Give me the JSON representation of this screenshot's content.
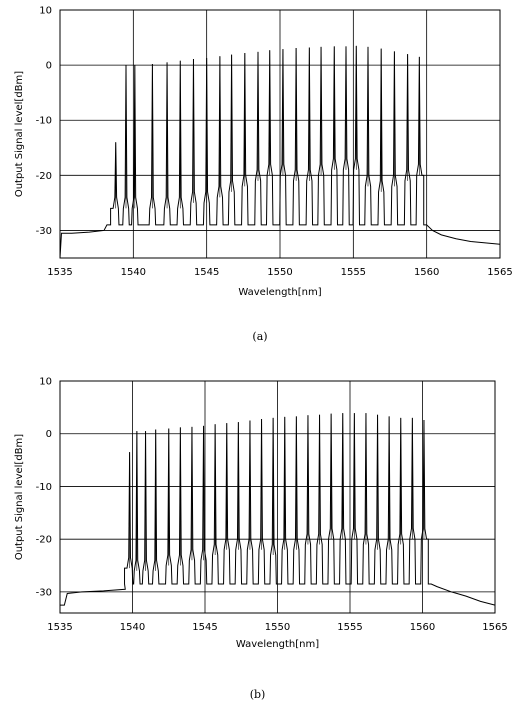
{
  "chart_data": [
    {
      "type": "line",
      "caption": "(a)",
      "xlabel": "Wavelength[nm]",
      "ylabel": "Output Signal level[dBm]",
      "xlim": [
        1535,
        1565
      ],
      "ylim": [
        -35,
        10
      ],
      "xticks": [
        1535,
        1540,
        1545,
        1550,
        1555,
        1560,
        1565
      ],
      "yticks": [
        10,
        0,
        -10,
        -20,
        -30
      ],
      "grid": true,
      "noise_floor": -29,
      "edge_level": -26,
      "peaks": [
        {
          "x": 1538.8,
          "y": -14,
          "base": -26
        },
        {
          "x": 1539.5,
          "y": 0,
          "base": -26
        },
        {
          "x": 1540.1,
          "y": 0,
          "base": -26
        },
        {
          "x": 1541.3,
          "y": 0.2,
          "base": -26
        },
        {
          "x": 1542.3,
          "y": 0.5,
          "base": -26
        },
        {
          "x": 1543.2,
          "y": 0.8,
          "base": -26
        },
        {
          "x": 1544.1,
          "y": 1.1,
          "base": -25
        },
        {
          "x": 1545.0,
          "y": 1.3,
          "base": -25
        },
        {
          "x": 1545.9,
          "y": 1.6,
          "base": -24
        },
        {
          "x": 1546.7,
          "y": 1.9,
          "base": -23
        },
        {
          "x": 1547.6,
          "y": 2.2,
          "base": -22
        },
        {
          "x": 1548.5,
          "y": 2.4,
          "base": -21
        },
        {
          "x": 1549.3,
          "y": 2.7,
          "base": -20
        },
        {
          "x": 1550.2,
          "y": 2.9,
          "base": -20
        },
        {
          "x": 1551.1,
          "y": 3.1,
          "base": -21
        },
        {
          "x": 1552.0,
          "y": 3.2,
          "base": -21
        },
        {
          "x": 1552.8,
          "y": 3.3,
          "base": -20
        },
        {
          "x": 1553.7,
          "y": 3.4,
          "base": -19
        },
        {
          "x": 1554.5,
          "y": 3.4,
          "base": -19
        },
        {
          "x": 1555.2,
          "y": 3.5,
          "base": -19
        },
        {
          "x": 1556.0,
          "y": 3.3,
          "base": -22
        },
        {
          "x": 1556.9,
          "y": 3.0,
          "base": -23
        },
        {
          "x": 1557.8,
          "y": 2.5,
          "base": -22
        },
        {
          "x": 1558.7,
          "y": 2.0,
          "base": -21
        },
        {
          "x": 1559.5,
          "y": 1.5,
          "base": -20
        }
      ],
      "leading_noise": [
        [
          1535.0,
          -35
        ],
        [
          1535.1,
          -30.5
        ],
        [
          1535.8,
          -30.5
        ],
        [
          1537.0,
          -30.3
        ],
        [
          1538.0,
          -30.0
        ],
        [
          1538.2,
          -29.0
        ]
      ],
      "trailing_noise": [
        [
          1560.0,
          -29.0
        ],
        [
          1560.4,
          -30.0
        ],
        [
          1561.0,
          -30.8
        ],
        [
          1562.0,
          -31.5
        ],
        [
          1563.0,
          -32.0
        ],
        [
          1565.0,
          -32.5
        ]
      ]
    },
    {
      "type": "line",
      "caption": "(b)",
      "xlabel": "Wavelength[nm]",
      "ylabel": "Output Signal level[dBm]",
      "xlim": [
        1535,
        1565
      ],
      "ylim": [
        -34,
        10
      ],
      "xticks": [
        1535,
        1540,
        1545,
        1550,
        1555,
        1560,
        1565
      ],
      "yticks": [
        10,
        0,
        -10,
        -20,
        -30
      ],
      "grid": true,
      "noise_floor": -28.5,
      "edge_level": -25.5,
      "peaks": [
        {
          "x": 1539.8,
          "y": -3.5,
          "base": -25.5
        },
        {
          "x": 1540.3,
          "y": 0.5,
          "base": -26
        },
        {
          "x": 1540.9,
          "y": 0.5,
          "base": -26
        },
        {
          "x": 1541.6,
          "y": 0.8,
          "base": -26
        },
        {
          "x": 1542.5,
          "y": 1.0,
          "base": -25
        },
        {
          "x": 1543.3,
          "y": 1.2,
          "base": -25
        },
        {
          "x": 1544.1,
          "y": 1.3,
          "base": -24
        },
        {
          "x": 1544.9,
          "y": 1.5,
          "base": -24
        },
        {
          "x": 1545.7,
          "y": 1.8,
          "base": -23
        },
        {
          "x": 1546.5,
          "y": 2.0,
          "base": -22
        },
        {
          "x": 1547.3,
          "y": 2.2,
          "base": -22
        },
        {
          "x": 1548.1,
          "y": 2.5,
          "base": -22
        },
        {
          "x": 1548.9,
          "y": 2.8,
          "base": -22
        },
        {
          "x": 1549.7,
          "y": 3.0,
          "base": -23
        },
        {
          "x": 1550.5,
          "y": 3.2,
          "base": -22
        },
        {
          "x": 1551.3,
          "y": 3.3,
          "base": -22
        },
        {
          "x": 1552.1,
          "y": 3.5,
          "base": -21
        },
        {
          "x": 1552.9,
          "y": 3.6,
          "base": -21
        },
        {
          "x": 1553.7,
          "y": 3.8,
          "base": -20
        },
        {
          "x": 1554.5,
          "y": 3.9,
          "base": -20
        },
        {
          "x": 1555.3,
          "y": 3.9,
          "base": -20
        },
        {
          "x": 1556.1,
          "y": 3.9,
          "base": -21
        },
        {
          "x": 1556.9,
          "y": 3.6,
          "base": -22
        },
        {
          "x": 1557.7,
          "y": 3.3,
          "base": -22
        },
        {
          "x": 1558.5,
          "y": 3.0,
          "base": -21
        },
        {
          "x": 1559.3,
          "y": 3.0,
          "base": -20
        },
        {
          "x": 1560.1,
          "y": 2.6,
          "base": -20
        }
      ],
      "leading_noise": [
        [
          1535.0,
          -32.5
        ],
        [
          1535.3,
          -32.5
        ],
        [
          1535.5,
          -30.3
        ],
        [
          1536.5,
          -30.0
        ],
        [
          1538.0,
          -29.8
        ],
        [
          1539.5,
          -29.5
        ]
      ],
      "trailing_noise": [
        [
          1560.6,
          -28.5
        ],
        [
          1561.0,
          -29.0
        ],
        [
          1562.0,
          -30.0
        ],
        [
          1563.0,
          -30.8
        ],
        [
          1564.0,
          -31.8
        ],
        [
          1565.0,
          -32.5
        ]
      ]
    }
  ]
}
